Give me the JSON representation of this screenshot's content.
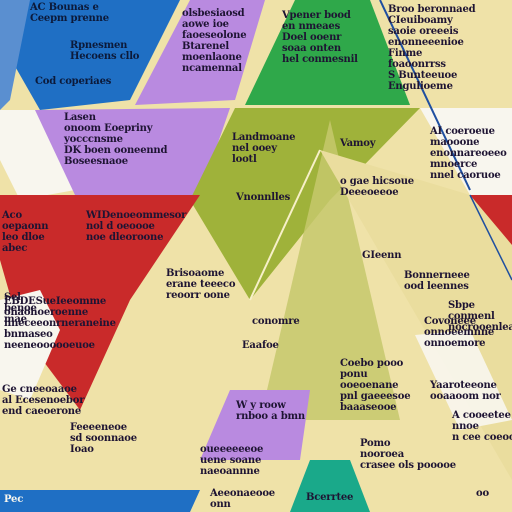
{
  "image": {
    "colors": {
      "parchment": "#efe2a8",
      "blue": "#1f6fc4",
      "purple": "#b98ae0",
      "green": "#2fa84a",
      "olive": "#9fb23a",
      "red": "#c92a2a",
      "teal": "#1aa98a",
      "white": "#f8f6ee",
      "ink": "#1e1433"
    },
    "texts": [
      "AC Bounas e\nCeepm prenne",
      "Rpnesmen\nHecoens cllo",
      "Cod coperiaes",
      "olsbesiaosd\naowe ioe\nfaoeseolone\nBtarenel\nmoenlaone\nncamennal",
      "Vpener bood\nen nmeaes\nDoel ooenr\nsoaa onten\nhel conmesnil",
      "Broo beronnaed\nCIeuiboamy\nsaoie oreeeis\nenonneeenioe\nFinme\nfoaoonrrss\nS Bunteeuoe\nEngulioeme",
      "Lasen\nonoom Eoepriny\nyocccnsme\nDK boen ooneennd\nBoseesnaoe",
      "Landmoane\nnel ooey\nlootl",
      "Vamoy",
      "AI coeroeue\nmaooone\nenonnareoeeo\nmnoerce\nnnel caoruoe",
      "Aco\noepaonn\nleo dloe\nabec",
      "WIDenoeommesor\nnol d oeoooe\nnoe dleoroone",
      "Vnonnlles",
      "o gae hicsoue\nDeeeoeeoe",
      "GIeenn",
      "Brisoaome\nerane teeeco\nreoorr oone",
      "Bonnerneee\nood leennes",
      "Sbpe\nconmenl\nnocrooenlea",
      "Sel\nbenoe\nmae",
      "conomre",
      "Eaafoe",
      "Covoneee\nonnoeemnne\nonnoemore",
      "EBDESueIeeomme\nonaonoeroenne\nnneceeonrneraneine\nbnmaseo\nneeneoooooeuoe",
      "Yaaroteeone\nooaaoom nor",
      "W y roow\nrnboo a bmn",
      "Coebo pooo\nponu\nooeoenane\npnl gaeeesoe\nbaaaseooe",
      "Feeeeneoe\nsd soonnaoe\nIoao",
      "Ge cneeoaaoe\nal Ecesenoebor\nend caeoerone",
      "oueeeeeeoe\nuene soane\nnaeoannne",
      "A cooeetee\nnnoe\nn cee coeool",
      "Pomo\nnooroea\ncrasee ols pooooe",
      "Aeeonaeooe\nonn",
      "Bcerrtee",
      "oo",
      "Pec"
    ]
  }
}
